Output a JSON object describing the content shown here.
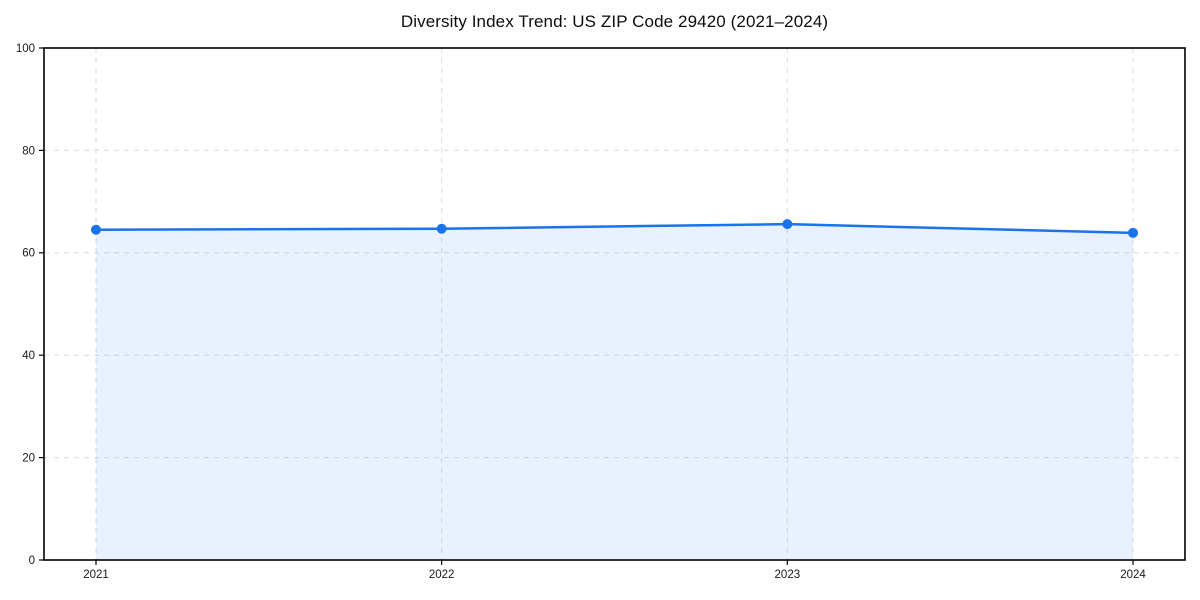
{
  "chart_data": {
    "type": "area",
    "title": "Diversity Index Trend: US ZIP Code 29420 (2021–2024)",
    "categories": [
      "2021",
      "2022",
      "2023",
      "2024"
    ],
    "values": [
      64.5,
      64.7,
      65.6,
      63.9
    ],
    "xlabel": "",
    "ylabel": "",
    "ylim": [
      0,
      100
    ],
    "yticks": [
      0,
      20,
      40,
      60,
      80,
      100
    ],
    "grid": true,
    "grid_style": "dashed",
    "legend": "none",
    "colors": {
      "line": "#1a73e8",
      "marker": "#1a73e8",
      "fill": "#1a73e8",
      "fill_opacity": 0.1,
      "grid": "#dbdbdb",
      "axis": "#000000",
      "tick_text": "#1a1a1a",
      "background": "#ffffff"
    }
  }
}
